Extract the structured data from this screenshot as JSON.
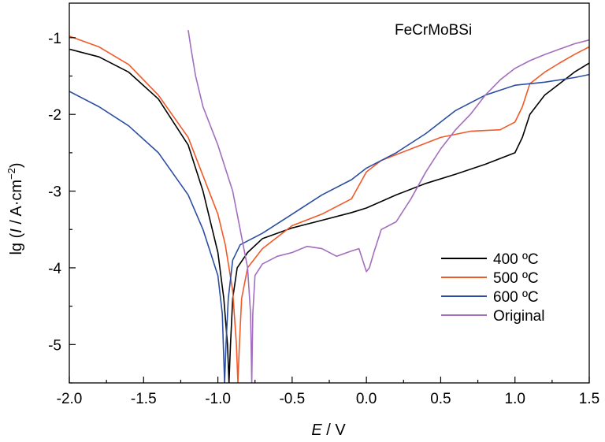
{
  "chart_data": {
    "type": "line",
    "annotation": "FeCrMoBSi",
    "xlabel_var": "E",
    "xlabel_unit": " / V",
    "ylabel_prefix": "lg (",
    "ylabel_var": "I",
    "ylabel_unit": " / A·cm",
    "ylabel_exp": "−2",
    "ylabel_suffix": ")",
    "xlim": [
      -2.0,
      1.5
    ],
    "ylim": [
      -5.5,
      -0.55
    ],
    "xticks": [
      -2.0,
      -1.5,
      -1.0,
      -0.5,
      0.0,
      0.5,
      1.0,
      1.5
    ],
    "xtick_labels": [
      "-2.0",
      "-1.5",
      "-1.0",
      "-0.5",
      "0.0",
      "0.5",
      "1.0",
      "1.5"
    ],
    "yticks": [
      -1,
      -2,
      -3,
      -4,
      -5
    ],
    "ytick_labels": [
      "-1",
      "-2",
      "-3",
      "-4",
      "-5"
    ],
    "grid": false,
    "legend_position": "bottom-right",
    "series": [
      {
        "name": "400 ºC",
        "color": "#000000",
        "points": [
          [
            -2.0,
            -1.15
          ],
          [
            -1.8,
            -1.25
          ],
          [
            -1.6,
            -1.45
          ],
          [
            -1.4,
            -1.8
          ],
          [
            -1.2,
            -2.4
          ],
          [
            -1.1,
            -3.0
          ],
          [
            -1.0,
            -3.8
          ],
          [
            -0.96,
            -4.4
          ],
          [
            -0.935,
            -5.0
          ],
          [
            -0.925,
            -5.5
          ],
          [
            -0.915,
            -5.0
          ],
          [
            -0.9,
            -4.4
          ],
          [
            -0.87,
            -4.0
          ],
          [
            -0.8,
            -3.8
          ],
          [
            -0.7,
            -3.62
          ],
          [
            -0.5,
            -3.48
          ],
          [
            -0.3,
            -3.38
          ],
          [
            -0.1,
            -3.28
          ],
          [
            0.0,
            -3.22
          ],
          [
            0.2,
            -3.05
          ],
          [
            0.4,
            -2.9
          ],
          [
            0.6,
            -2.78
          ],
          [
            0.8,
            -2.65
          ],
          [
            1.0,
            -2.5
          ],
          [
            1.05,
            -2.3
          ],
          [
            1.1,
            -2.0
          ],
          [
            1.2,
            -1.75
          ],
          [
            1.3,
            -1.6
          ],
          [
            1.4,
            -1.45
          ],
          [
            1.5,
            -1.33
          ]
        ]
      },
      {
        "name": "500 ºC",
        "color": "#f05a28",
        "points": [
          [
            -2.0,
            -0.98
          ],
          [
            -1.8,
            -1.12
          ],
          [
            -1.6,
            -1.35
          ],
          [
            -1.4,
            -1.75
          ],
          [
            -1.2,
            -2.3
          ],
          [
            -1.1,
            -2.8
          ],
          [
            -1.0,
            -3.3
          ],
          [
            -0.95,
            -3.7
          ],
          [
            -0.9,
            -4.3
          ],
          [
            -0.875,
            -5.0
          ],
          [
            -0.865,
            -5.5
          ],
          [
            -0.855,
            -5.0
          ],
          [
            -0.84,
            -4.4
          ],
          [
            -0.8,
            -4.0
          ],
          [
            -0.7,
            -3.75
          ],
          [
            -0.5,
            -3.45
          ],
          [
            -0.3,
            -3.3
          ],
          [
            -0.1,
            -3.1
          ],
          [
            0.0,
            -2.75
          ],
          [
            0.1,
            -2.6
          ],
          [
            0.3,
            -2.45
          ],
          [
            0.5,
            -2.3
          ],
          [
            0.7,
            -2.22
          ],
          [
            0.9,
            -2.2
          ],
          [
            1.0,
            -2.1
          ],
          [
            1.05,
            -1.9
          ],
          [
            1.1,
            -1.6
          ],
          [
            1.2,
            -1.45
          ],
          [
            1.3,
            -1.33
          ],
          [
            1.4,
            -1.22
          ],
          [
            1.5,
            -1.12
          ]
        ]
      },
      {
        "name": "600 ºC",
        "color": "#2b4ea2",
        "points": [
          [
            -2.0,
            -1.7
          ],
          [
            -1.8,
            -1.9
          ],
          [
            -1.6,
            -2.15
          ],
          [
            -1.4,
            -2.5
          ],
          [
            -1.2,
            -3.05
          ],
          [
            -1.1,
            -3.5
          ],
          [
            -1.0,
            -4.1
          ],
          [
            -0.97,
            -4.6
          ],
          [
            -0.955,
            -5.5
          ],
          [
            -0.945,
            -5.0
          ],
          [
            -0.93,
            -4.4
          ],
          [
            -0.9,
            -3.9
          ],
          [
            -0.85,
            -3.7
          ],
          [
            -0.7,
            -3.55
          ],
          [
            -0.5,
            -3.3
          ],
          [
            -0.3,
            -3.05
          ],
          [
            -0.1,
            -2.85
          ],
          [
            0.0,
            -2.7
          ],
          [
            0.2,
            -2.5
          ],
          [
            0.4,
            -2.25
          ],
          [
            0.6,
            -1.95
          ],
          [
            0.8,
            -1.75
          ],
          [
            1.0,
            -1.62
          ],
          [
            1.2,
            -1.58
          ],
          [
            1.4,
            -1.52
          ],
          [
            1.5,
            -1.48
          ]
        ]
      },
      {
        "name": "Original",
        "color": "#a26ebd",
        "points": [
          [
            -1.2,
            -0.9
          ],
          [
            -1.18,
            -1.15
          ],
          [
            -1.15,
            -1.5
          ],
          [
            -1.1,
            -1.9
          ],
          [
            -1.0,
            -2.4
          ],
          [
            -0.9,
            -3.0
          ],
          [
            -0.85,
            -3.5
          ],
          [
            -0.8,
            -4.0
          ],
          [
            -0.78,
            -4.6
          ],
          [
            -0.772,
            -5.5
          ],
          [
            -0.765,
            -4.6
          ],
          [
            -0.75,
            -4.1
          ],
          [
            -0.7,
            -3.95
          ],
          [
            -0.6,
            -3.85
          ],
          [
            -0.5,
            -3.8
          ],
          [
            -0.4,
            -3.72
          ],
          [
            -0.3,
            -3.75
          ],
          [
            -0.2,
            -3.85
          ],
          [
            -0.1,
            -3.78
          ],
          [
            -0.05,
            -3.75
          ],
          [
            0.0,
            -4.05
          ],
          [
            0.02,
            -4.0
          ],
          [
            0.05,
            -3.8
          ],
          [
            0.1,
            -3.5
          ],
          [
            0.2,
            -3.4
          ],
          [
            0.3,
            -3.1
          ],
          [
            0.4,
            -2.75
          ],
          [
            0.5,
            -2.45
          ],
          [
            0.6,
            -2.2
          ],
          [
            0.7,
            -2.0
          ],
          [
            0.8,
            -1.75
          ],
          [
            0.9,
            -1.55
          ],
          [
            1.0,
            -1.4
          ],
          [
            1.1,
            -1.3
          ],
          [
            1.2,
            -1.22
          ],
          [
            1.3,
            -1.15
          ],
          [
            1.4,
            -1.08
          ],
          [
            1.5,
            -1.03
          ]
        ]
      }
    ]
  }
}
